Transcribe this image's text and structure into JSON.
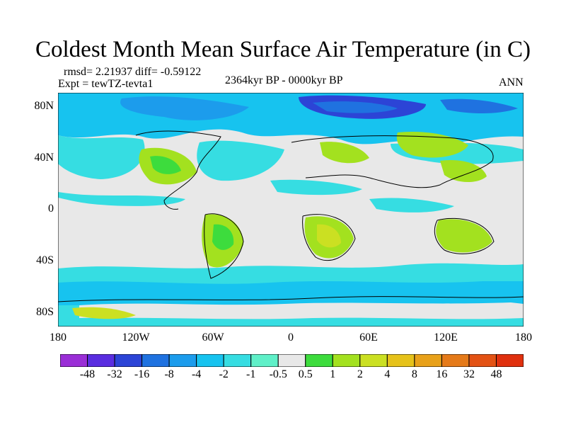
{
  "title": "Coldest Month Mean Surface Air Temperature (in C)",
  "stats": "rmsd= 2.21937 diff= -0.59122",
  "experiment": "Expt = tewTZ-tevta1",
  "period": "2364kyr BP - 0000kyr BP",
  "season": "ANN",
  "lat_labels": [
    "80N",
    "40N",
    "0",
    "40S",
    "80S"
  ],
  "lon_labels": [
    "180",
    "120W",
    "60W",
    "0",
    "60E",
    "120E",
    "180"
  ],
  "colorbar": {
    "labels": [
      "-48",
      "-32",
      "-16",
      "-8",
      "-4",
      "-2",
      "-1",
      "-0.5",
      "0.5",
      "1",
      "2",
      "4",
      "8",
      "16",
      "32",
      "48"
    ],
    "colors": [
      "#9a2ed6",
      "#5a2de0",
      "#2c44d6",
      "#1f72e0",
      "#1c9cec",
      "#17c3ef",
      "#36dde2",
      "#5ff0c8",
      "#e8e8e8",
      "#3ddc3d",
      "#a3e11f",
      "#cbe022",
      "#e6c21a",
      "#e8a11a",
      "#e57a19",
      "#e35214",
      "#e0300e"
    ]
  }
}
